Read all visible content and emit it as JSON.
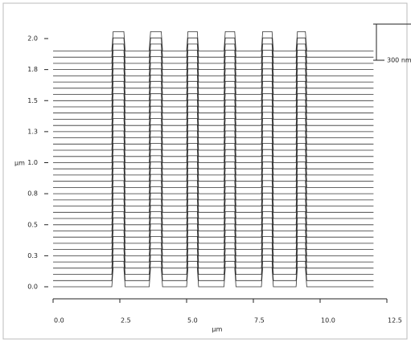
{
  "chart_data": {
    "type": "waterfall",
    "xlabel": "µm",
    "ylabel": "µm",
    "xlim": [
      0,
      12.5
    ],
    "xticks": [
      {
        "value": 0,
        "label": "0.0"
      },
      2.5,
      {
        "value": 5,
        "label": "5.0"
      },
      7.5,
      {
        "value": 10,
        "label": "10.0"
      },
      12.5
    ],
    "ylim": [
      0,
      2
    ],
    "yticks": [
      {
        "value": 0,
        "label": "0.0"
      },
      {
        "value": 0.25,
        "label": "0.3"
      },
      0.5,
      {
        "value": 0.75,
        "label": "0.8"
      },
      {
        "value": 1,
        "label": "1.0"
      },
      {
        "value": 1.25,
        "label": "1.3"
      },
      1.5,
      {
        "value": 1.75,
        "label": "1.8"
      },
      {
        "value": 2,
        "label": "2.0"
      }
    ],
    "scale_bar": {
      "value": 300,
      "label": "300 nm"
    },
    "color": "#333333",
    "profile": {
      "x": [
        0,
        2.2,
        2.25,
        2.65,
        2.7,
        3.6,
        3.65,
        4.05,
        4.1,
        5.0,
        5.05,
        5.4,
        5.45,
        6.4,
        6.45,
        6.8,
        6.85,
        7.8,
        7.85,
        8.2,
        8.25,
        9.1,
        9.15,
        9.45,
        9.5,
        12.0
      ],
      "height_nm": [
        0,
        0,
        160,
        160,
        0,
        0,
        160,
        160,
        0,
        0,
        160,
        160,
        0,
        0,
        160,
        160,
        0,
        0,
        160,
        160,
        0,
        0,
        160,
        160,
        0,
        0
      ]
    },
    "scan_y": [
      0,
      0.05,
      0.1,
      0.15,
      0.2,
      0.25,
      0.3,
      0.35,
      0.4,
      0.45,
      0.5,
      0.55,
      0.6,
      0.65,
      0.7,
      0.75,
      0.8,
      0.85,
      0.9,
      0.95,
      1.0,
      1.05,
      1.1,
      1.15,
      1.2,
      1.25,
      1.3,
      1.35,
      1.4,
      1.45,
      1.5,
      1.55,
      1.6,
      1.65,
      1.7,
      1.75,
      1.8,
      1.85,
      1.9
    ]
  }
}
